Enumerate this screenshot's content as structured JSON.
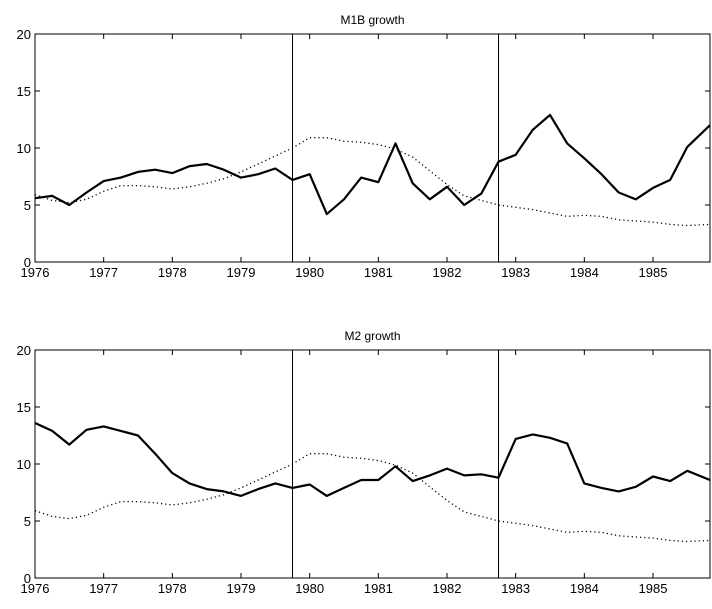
{
  "chart_data": [
    {
      "type": "line",
      "title": "M1B growth",
      "xlabel": "",
      "ylabel": "",
      "xlim": [
        1976,
        1985.83
      ],
      "ylim": [
        0,
        20
      ],
      "xticks": [
        1976,
        1977,
        1978,
        1979,
        1980,
        1981,
        1982,
        1983,
        1984,
        1985
      ],
      "yticks": [
        0,
        5,
        10,
        15,
        20
      ],
      "grid": false,
      "vlines": [
        1979.75,
        1982.75
      ],
      "series": [
        {
          "style": "solid",
          "x": [
            1976.0,
            1976.25,
            1976.5,
            1976.75,
            1977.0,
            1977.25,
            1977.5,
            1977.75,
            1978.0,
            1978.25,
            1978.5,
            1978.75,
            1979.0,
            1979.25,
            1979.5,
            1979.75,
            1980.0,
            1980.25,
            1980.5,
            1980.75,
            1981.0,
            1981.25,
            1981.5,
            1981.75,
            1982.0,
            1982.25,
            1982.5,
            1982.75,
            1983.0,
            1983.25,
            1983.5,
            1983.75,
            1984.0,
            1984.25,
            1984.5,
            1984.75,
            1985.0,
            1985.25,
            1985.5,
            1985.83
          ],
          "y": [
            5.6,
            5.8,
            5.0,
            6.1,
            7.1,
            7.4,
            7.9,
            8.1,
            7.8,
            8.4,
            8.6,
            8.1,
            7.4,
            7.7,
            8.2,
            7.2,
            7.7,
            4.2,
            5.5,
            7.4,
            7.0,
            10.4,
            6.9,
            5.5,
            6.6,
            5.0,
            6.0,
            8.8,
            9.4,
            11.6,
            12.9,
            10.4,
            9.1,
            7.7,
            6.1,
            5.5,
            6.5,
            7.2,
            10.1,
            12.0
          ]
        },
        {
          "style": "dotted",
          "x": [
            1976.0,
            1976.25,
            1976.5,
            1976.75,
            1977.0,
            1977.25,
            1977.5,
            1977.75,
            1978.0,
            1978.25,
            1978.5,
            1978.75,
            1979.0,
            1979.25,
            1979.5,
            1979.75,
            1980.0,
            1980.25,
            1980.5,
            1980.75,
            1981.0,
            1981.25,
            1981.5,
            1981.75,
            1982.0,
            1982.25,
            1982.5,
            1982.75,
            1983.0,
            1983.25,
            1983.5,
            1983.75,
            1984.0,
            1984.25,
            1984.5,
            1984.75,
            1985.0,
            1985.25,
            1985.5,
            1985.83
          ],
          "y": [
            5.9,
            5.4,
            5.2,
            5.5,
            6.2,
            6.7,
            6.7,
            6.6,
            6.4,
            6.6,
            6.9,
            7.3,
            7.9,
            8.6,
            9.3,
            10.0,
            10.9,
            10.9,
            10.6,
            10.5,
            10.3,
            9.9,
            9.2,
            8.0,
            6.8,
            5.8,
            5.4,
            5.0,
            4.8,
            4.6,
            4.3,
            4.0,
            4.1,
            4.0,
            3.7,
            3.6,
            3.5,
            3.3,
            3.2,
            3.3
          ]
        }
      ]
    },
    {
      "type": "line",
      "title": "M2 growth",
      "xlabel": "",
      "ylabel": "",
      "xlim": [
        1976,
        1985.83
      ],
      "ylim": [
        0,
        20
      ],
      "xticks": [
        1976,
        1977,
        1978,
        1979,
        1980,
        1981,
        1982,
        1983,
        1984,
        1985
      ],
      "yticks": [
        0,
        5,
        10,
        15,
        20
      ],
      "grid": false,
      "vlines": [
        1979.75,
        1982.75
      ],
      "series": [
        {
          "style": "solid",
          "x": [
            1976.0,
            1976.25,
            1976.5,
            1976.75,
            1977.0,
            1977.25,
            1977.5,
            1977.75,
            1978.0,
            1978.25,
            1978.5,
            1978.75,
            1979.0,
            1979.25,
            1979.5,
            1979.75,
            1980.0,
            1980.25,
            1980.5,
            1980.75,
            1981.0,
            1981.25,
            1981.5,
            1981.75,
            1982.0,
            1982.25,
            1982.5,
            1982.75,
            1983.0,
            1983.25,
            1983.5,
            1983.75,
            1984.0,
            1984.25,
            1984.5,
            1984.75,
            1985.0,
            1985.25,
            1985.5,
            1985.83
          ],
          "y": [
            13.6,
            12.9,
            11.7,
            13.0,
            13.3,
            12.9,
            12.5,
            10.9,
            9.2,
            8.3,
            7.8,
            7.6,
            7.2,
            7.8,
            8.3,
            7.9,
            8.2,
            7.2,
            7.9,
            8.6,
            8.6,
            9.8,
            8.5,
            9.0,
            9.6,
            9.0,
            9.1,
            8.8,
            12.2,
            12.6,
            12.3,
            11.8,
            8.3,
            7.9,
            7.6,
            8.0,
            8.9,
            8.5,
            9.4,
            8.6
          ]
        },
        {
          "style": "dotted",
          "x": [
            1976.0,
            1976.25,
            1976.5,
            1976.75,
            1977.0,
            1977.25,
            1977.5,
            1977.75,
            1978.0,
            1978.25,
            1978.5,
            1978.75,
            1979.0,
            1979.25,
            1979.5,
            1979.75,
            1980.0,
            1980.25,
            1980.5,
            1980.75,
            1981.0,
            1981.25,
            1981.5,
            1981.75,
            1982.0,
            1982.25,
            1982.5,
            1982.75,
            1983.0,
            1983.25,
            1983.5,
            1983.75,
            1984.0,
            1984.25,
            1984.5,
            1984.75,
            1985.0,
            1985.25,
            1985.5,
            1985.83
          ],
          "y": [
            5.9,
            5.4,
            5.2,
            5.5,
            6.2,
            6.7,
            6.7,
            6.6,
            6.4,
            6.6,
            6.9,
            7.3,
            7.9,
            8.6,
            9.3,
            10.0,
            10.9,
            10.9,
            10.6,
            10.5,
            10.3,
            9.9,
            9.2,
            8.0,
            6.8,
            5.8,
            5.4,
            5.0,
            4.8,
            4.6,
            4.3,
            4.0,
            4.1,
            4.0,
            3.7,
            3.6,
            3.5,
            3.3,
            3.2,
            3.3
          ]
        }
      ]
    }
  ]
}
